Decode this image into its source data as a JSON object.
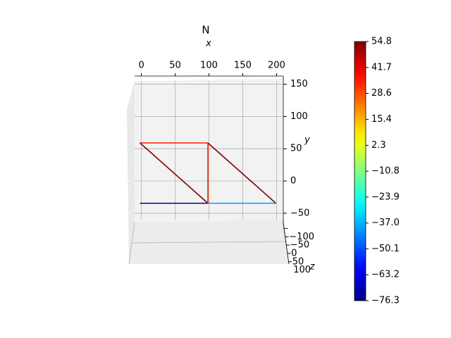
{
  "chart_data": {
    "type": "truss",
    "title": "N",
    "xlabel": "x",
    "ylabel": "y",
    "zlabel": "z",
    "xlim": [
      -10,
      210
    ],
    "ylim": [
      -60,
      155
    ],
    "zlim": [
      -110,
      110
    ],
    "xticks": [
      0,
      50,
      100,
      150,
      200
    ],
    "yticks": [
      {
        "value": -50,
        "label": "−50"
      },
      0,
      50,
      100,
      150
    ],
    "zticks": [
      {
        "value": -100,
        "label": "−100"
      },
      {
        "value": -50,
        "label": "−50"
      },
      0,
      50,
      100
    ],
    "grid": true,
    "colormap": "jet",
    "clim": [
      -76.3,
      54.8
    ],
    "cticks": [
      {
        "value": -76.3,
        "label": "−76.3"
      },
      {
        "value": -63.2,
        "label": "−63.2"
      },
      {
        "value": -50.1,
        "label": "−50.1"
      },
      {
        "value": -37.0,
        "label": "−37.0"
      },
      {
        "value": -23.9,
        "label": "−23.9"
      },
      {
        "value": -10.8,
        "label": "−10.8"
      },
      2.3,
      15.4,
      28.6,
      41.7,
      54.8
    ],
    "members": [
      {
        "x": [
          0,
          100
        ],
        "y": [
          0,
          0
        ],
        "value": -76.3
      },
      {
        "x": [
          100,
          200
        ],
        "y": [
          0,
          0
        ],
        "value": -40
      },
      {
        "x": [
          0,
          100
        ],
        "y": [
          100,
          100
        ],
        "value": 35
      },
      {
        "x": [
          0,
          100
        ],
        "y": [
          100,
          0
        ],
        "value": 54.8
      },
      {
        "x": [
          100,
          100
        ],
        "y": [
          100,
          0
        ],
        "value": 35
      },
      {
        "x": [
          100,
          200
        ],
        "y": [
          100,
          0
        ],
        "value": 54.8
      }
    ]
  }
}
